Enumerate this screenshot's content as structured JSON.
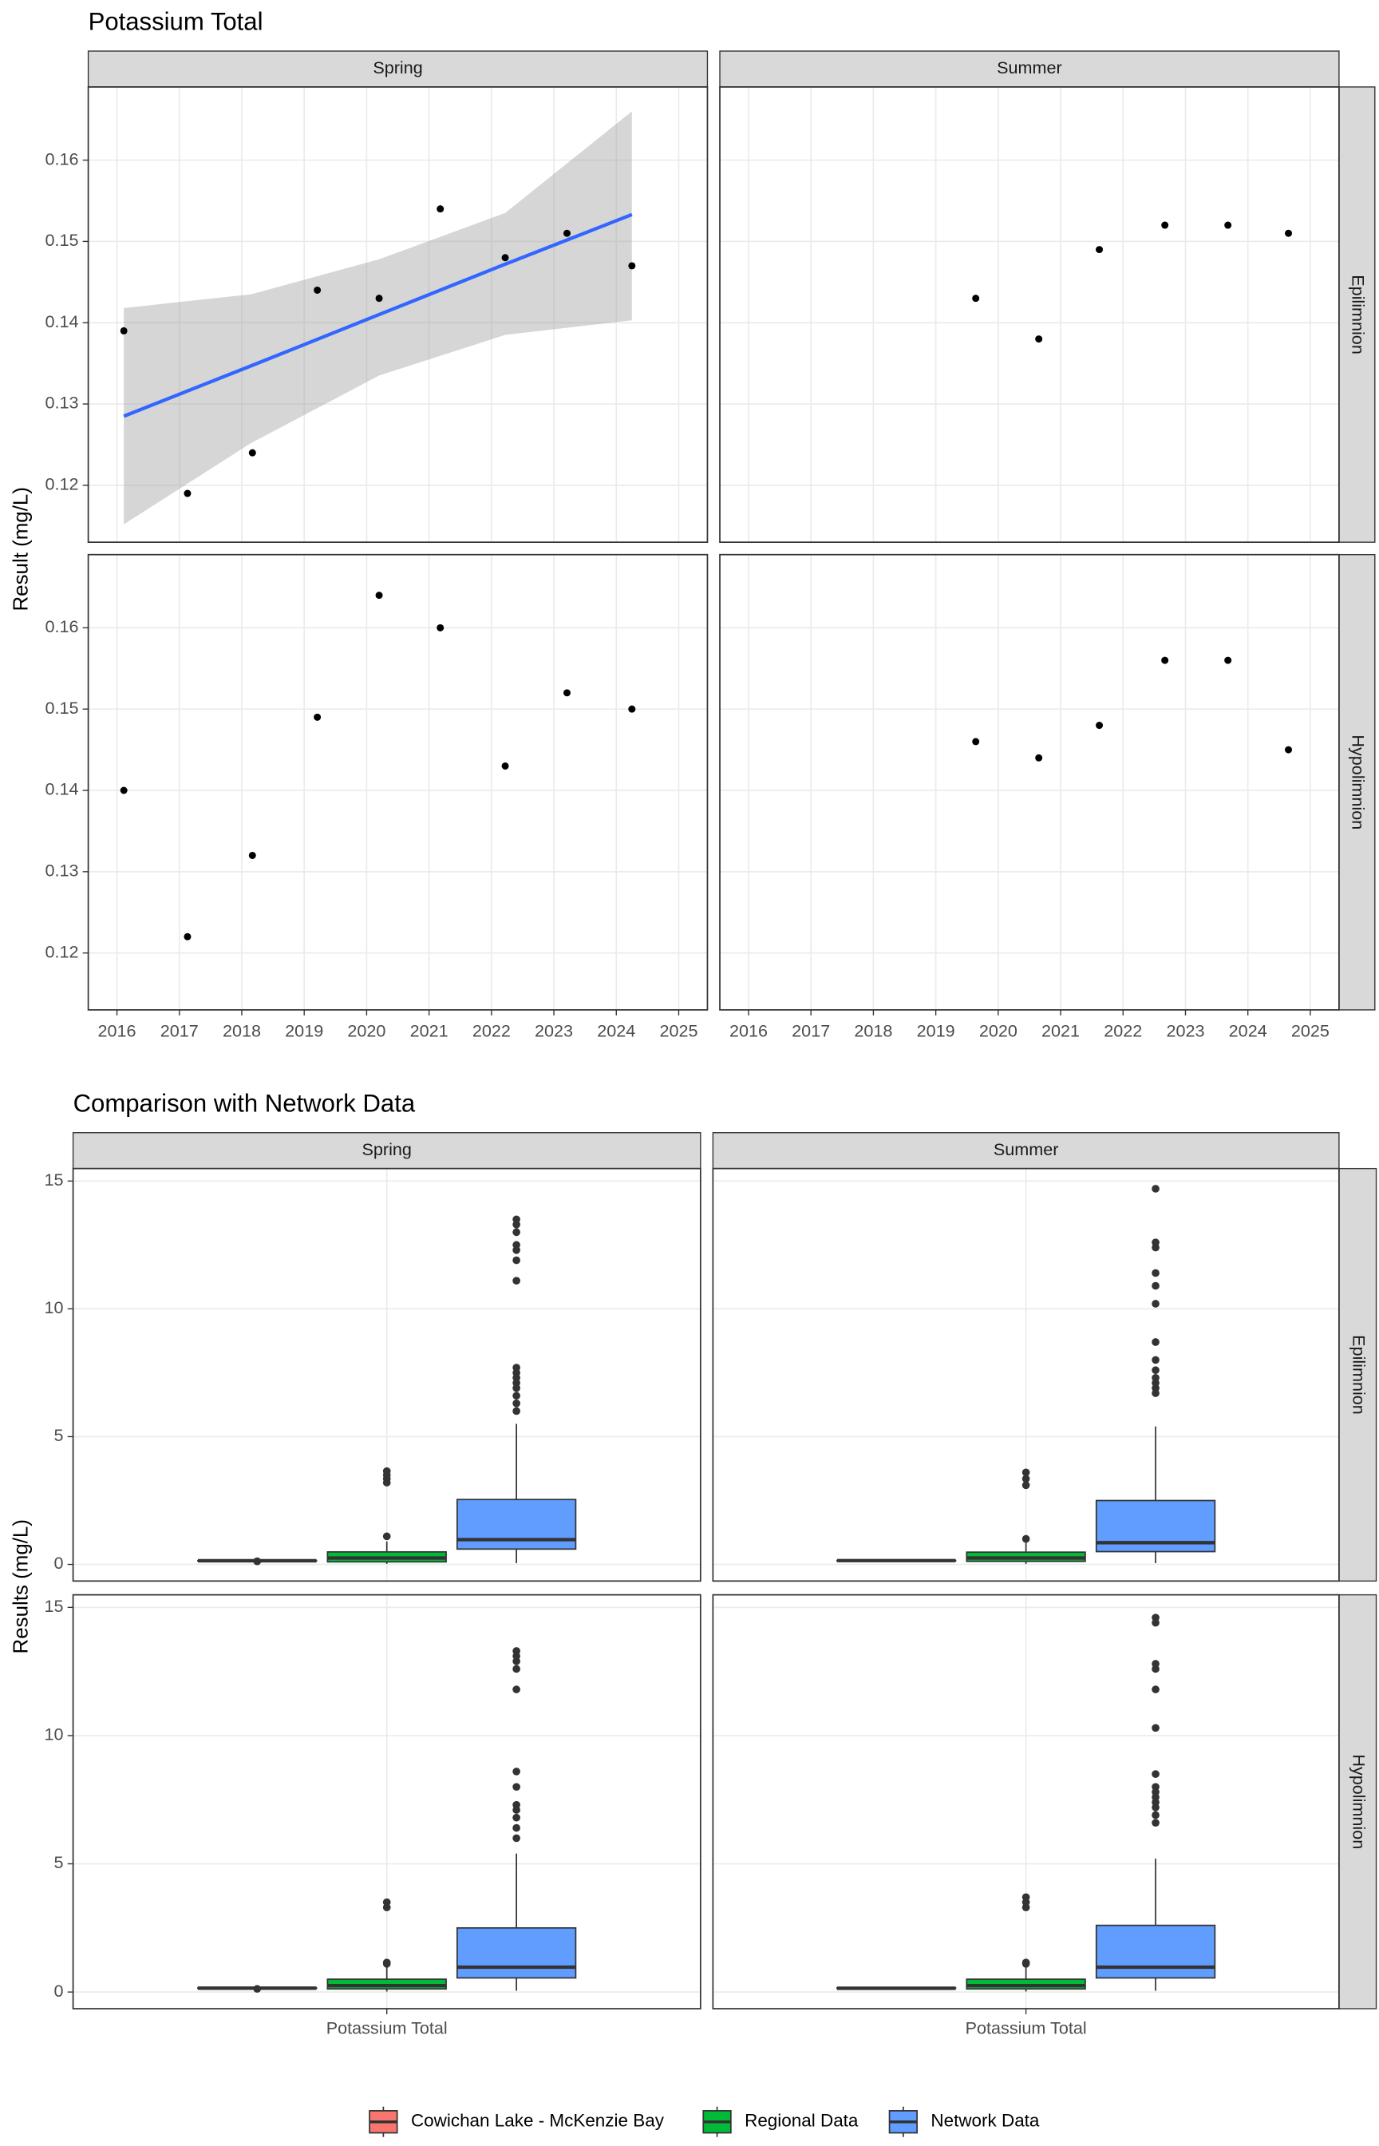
{
  "chart_data": [
    {
      "type": "scatter",
      "title": "Potassium Total",
      "y_label": "Result (mg/L)",
      "columns": [
        "Spring",
        "Summer"
      ],
      "rows": [
        "Epilimnion",
        "Hypolimnion"
      ],
      "xlim": [
        2015.54,
        2025.46
      ],
      "xticks": [
        2016,
        2017,
        2018,
        2019,
        2020,
        2021,
        2022,
        2023,
        2024,
        2025
      ],
      "ylim": [
        0.113,
        0.169
      ],
      "yticks": [
        0.12,
        0.13,
        0.14,
        0.15,
        0.16
      ],
      "grid": true,
      "point_color": "#000000",
      "panels": [
        [
          {
            "x": [
              2016.11,
              2017.13,
              2018.17,
              2019.21,
              2020.2,
              2021.18,
              2022.22,
              2023.21,
              2024.25
            ],
            "y": [
              0.139,
              0.119,
              0.124,
              0.144,
              0.143,
              0.154,
              0.148,
              0.151,
              0.147
            ],
            "smooth": {
              "color": "#3366FF",
              "band_color": "#999999",
              "x": [
                2016.11,
                2018.15,
                2020.2,
                2022.22,
                2024.25
              ],
              "y": [
                0.1285,
                0.1347,
                0.141,
                0.1472,
                0.1533
              ],
              "lower": [
                0.1152,
                0.1252,
                0.1335,
                0.1385,
                0.1403
              ],
              "upper": [
                0.1418,
                0.1435,
                0.1478,
                0.1535,
                0.166
              ]
            }
          },
          {
            "x": [
              2019.64,
              2020.65,
              2021.62,
              2022.67,
              2023.68,
              2024.65
            ],
            "y": [
              0.143,
              0.138,
              0.149,
              0.152,
              0.152,
              0.151
            ]
          }
        ],
        [
          {
            "x": [
              2016.11,
              2017.13,
              2018.17,
              2019.21,
              2020.2,
              2021.18,
              2022.22,
              2023.21,
              2024.25
            ],
            "y": [
              0.14,
              0.122,
              0.132,
              0.149,
              0.164,
              0.16,
              0.143,
              0.152,
              0.15
            ]
          },
          {
            "x": [
              2019.64,
              2020.65,
              2021.62,
              2022.67,
              2023.68,
              2024.65
            ],
            "y": [
              0.146,
              0.144,
              0.148,
              0.156,
              0.156,
              0.145
            ]
          }
        ]
      ]
    },
    {
      "type": "box",
      "title": "Comparison with Network Data",
      "y_label": "Results (mg/L)",
      "columns": [
        "Spring",
        "Summer"
      ],
      "rows": [
        "Epilimnion",
        "Hypolimnion"
      ],
      "categories": [
        "Potassium Total"
      ],
      "ylim": [
        -0.65,
        15.49
      ],
      "yticks": [
        0,
        5,
        10,
        15
      ],
      "grid": true,
      "legend": "bottom",
      "outlier_color": "#333333",
      "series": [
        {
          "name": "Cowichan Lake - McKenzie Bay",
          "color": "#F8766D"
        },
        {
          "name": "Regional Data",
          "color": "#00BA38"
        },
        {
          "name": "Network Data",
          "color": "#619CFF"
        }
      ],
      "panels": [
        [
          [
            {
              "low": 0.139,
              "q1": 0.139,
              "median": 0.144,
              "q3": 0.148,
              "high": 0.154,
              "outliers": [
                0.119,
                0.124
              ]
            },
            {
              "low": 0.02,
              "q1": 0.1,
              "median": 0.25,
              "q3": 0.49,
              "high": 0.9,
              "outliers": [
                1.1,
                3.2,
                3.35,
                3.5,
                3.65
              ]
            },
            {
              "low": 0.05,
              "q1": 0.6,
              "median": 0.97,
              "q3": 2.54,
              "high": 5.5,
              "outliers": [
                6.0,
                6.3,
                6.6,
                6.9,
                7.1,
                7.3,
                7.5,
                7.7,
                11.1,
                11.9,
                12.3,
                12.5,
                13.0,
                13.3,
                13.5
              ]
            }
          ],
          [
            {
              "low": 0.138,
              "q1": 0.143,
              "median": 0.15,
              "q3": 0.152,
              "high": 0.152,
              "outliers": []
            },
            {
              "low": 0.02,
              "q1": 0.12,
              "median": 0.25,
              "q3": 0.48,
              "high": 0.9,
              "outliers": [
                1.0,
                3.1,
                3.35,
                3.6
              ]
            },
            {
              "low": 0.05,
              "q1": 0.5,
              "median": 0.85,
              "q3": 2.5,
              "high": 5.4,
              "outliers": [
                6.7,
                6.9,
                7.1,
                7.3,
                7.6,
                8.0,
                8.7,
                10.2,
                10.9,
                11.4,
                12.4,
                12.6,
                14.7
              ]
            }
          ]
        ],
        [
          [
            {
              "low": 0.132,
              "q1": 0.143,
              "median": 0.15,
              "q3": 0.16,
              "high": 0.164,
              "outliers": [
                0.122
              ]
            },
            {
              "low": 0.02,
              "q1": 0.12,
              "median": 0.25,
              "q3": 0.5,
              "high": 1.0,
              "outliers": [
                1.1,
                1.15,
                3.3,
                3.5
              ]
            },
            {
              "low": 0.05,
              "q1": 0.55,
              "median": 0.97,
              "q3": 2.5,
              "high": 5.4,
              "outliers": [
                6.0,
                6.4,
                6.8,
                7.1,
                7.3,
                8.0,
                8.6,
                11.8,
                12.6,
                12.9,
                13.1,
                13.3
              ]
            }
          ],
          [
            {
              "low": 0.144,
              "q1": 0.145,
              "median": 0.147,
              "q3": 0.156,
              "high": 0.156,
              "outliers": []
            },
            {
              "low": 0.02,
              "q1": 0.12,
              "median": 0.25,
              "q3": 0.5,
              "high": 1.0,
              "outliers": [
                1.1,
                1.15,
                3.3,
                3.5,
                3.7
              ]
            },
            {
              "low": 0.05,
              "q1": 0.55,
              "median": 0.97,
              "q3": 2.6,
              "high": 5.2,
              "outliers": [
                6.6,
                6.9,
                7.2,
                7.4,
                7.6,
                7.8,
                8.0,
                8.5,
                10.3,
                11.8,
                12.6,
                12.8,
                14.4,
                14.6
              ]
            }
          ]
        ]
      ]
    }
  ]
}
